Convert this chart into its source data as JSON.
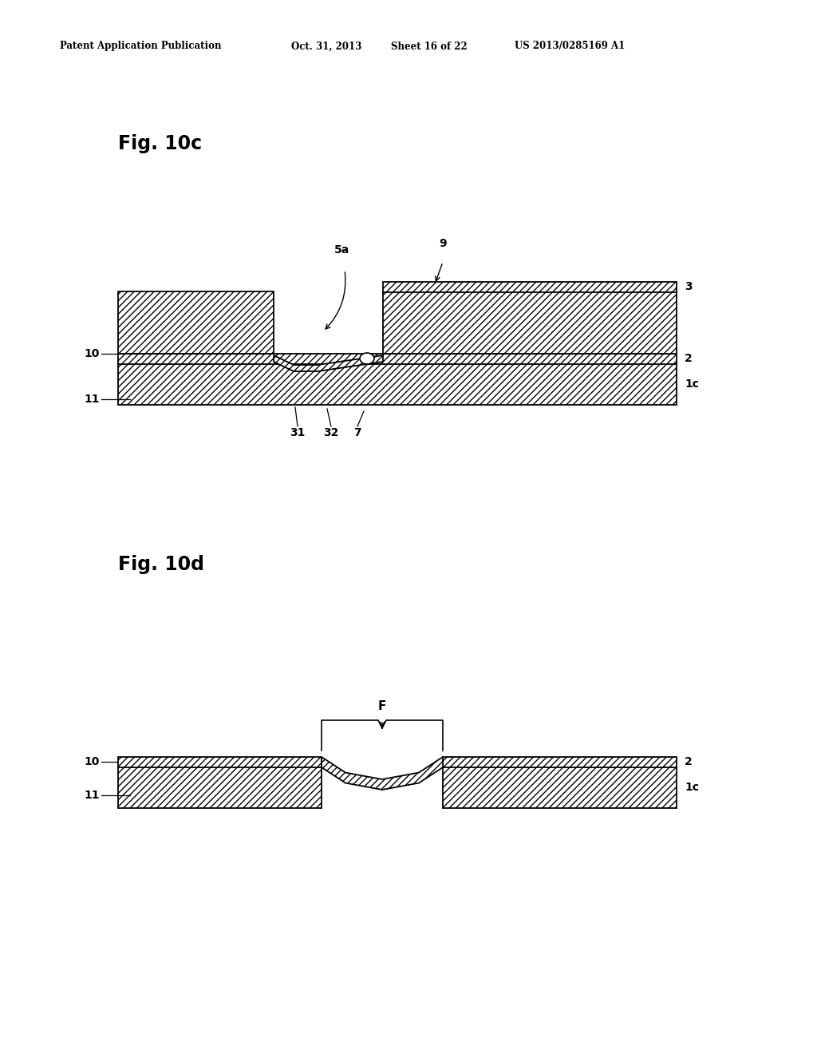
{
  "bg_color": "#ffffff",
  "header_text": "Patent Application Publication",
  "header_date": "Oct. 31, 2013",
  "header_sheet": "Sheet 16 of 22",
  "header_patent": "US 2013/0285169 A1",
  "fig10c_label": "Fig. 10c",
  "fig10d_label": "Fig. 10d",
  "hatch_pattern": "////",
  "line_color": "#000000",
  "fill_color": "#ffffff"
}
